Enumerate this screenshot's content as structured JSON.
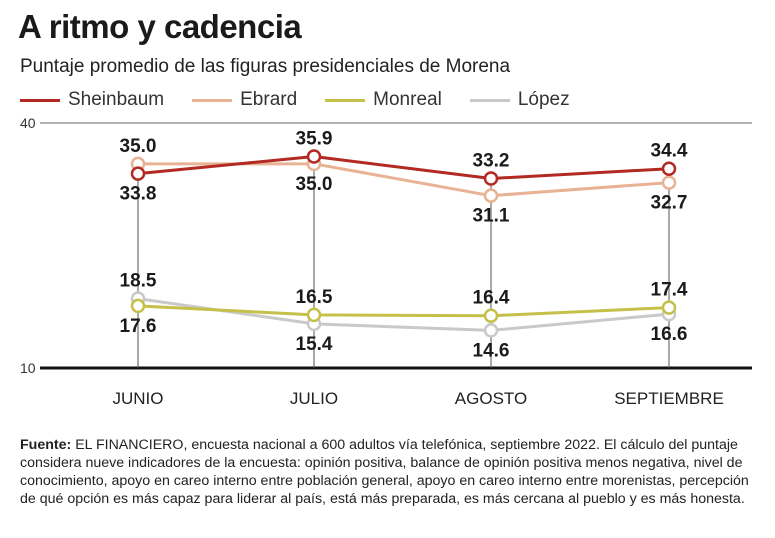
{
  "title": "A ritmo y cadencia",
  "subtitle": "Puntaje promedio de las figuras presidenciales de Morena",
  "source_label": "Fuente:",
  "source_text": "EL FINANCIERO, encuesta nacional a 600 adultos vía telefónica, septiembre 2022. El cálculo del puntaje considera nueve indicadores de la encuesta: opinión positiva, balance de opinión positiva menos negativa, nivel de conocimiento, apoyo en careo interno entre población general, apoyo en careo interno entre morenistas, percepción de qué opción es más capaz para liderar al país, está más preparada, es más cercana al pueblo y es más honesta.",
  "chart_data": {
    "type": "line",
    "categories": [
      "JUNIO",
      "JULIO",
      "AGOSTO",
      "SEPTIEMBRE"
    ],
    "ylim": [
      10,
      40
    ],
    "yticks": [
      "40",
      "10"
    ],
    "grid": false,
    "legend_position": "top-left",
    "series": [
      {
        "name": "Sheinbaum",
        "color": "#b22a22",
        "values": [
          33.8,
          35.9,
          33.2,
          34.4
        ],
        "labels": [
          "33.8",
          "35.9",
          "33.2",
          "34.4"
        ],
        "label_pos": [
          "below",
          "above",
          "above",
          "above"
        ]
      },
      {
        "name": "Ebrard",
        "color": "#e8b294",
        "values": [
          35.0,
          35.0,
          31.1,
          32.7
        ],
        "labels": [
          "35.0",
          "35.0",
          "31.1",
          "32.7"
        ],
        "label_pos": [
          "above",
          "below",
          "below",
          "below"
        ]
      },
      {
        "name": "Monreal",
        "color": "#c4c04a",
        "values": [
          17.6,
          16.5,
          16.4,
          17.4
        ],
        "labels": [
          "17.6",
          "16.5",
          "16.4",
          "17.4"
        ],
        "label_pos": [
          "below",
          "above",
          "above",
          "above"
        ]
      },
      {
        "name": "López",
        "color": "#c9c9c9",
        "values": [
          18.5,
          15.4,
          14.6,
          16.6
        ],
        "labels": [
          "18.5",
          "15.4",
          "14.6",
          "16.6"
        ],
        "label_pos": [
          "above",
          "below",
          "below",
          "below"
        ]
      }
    ]
  }
}
